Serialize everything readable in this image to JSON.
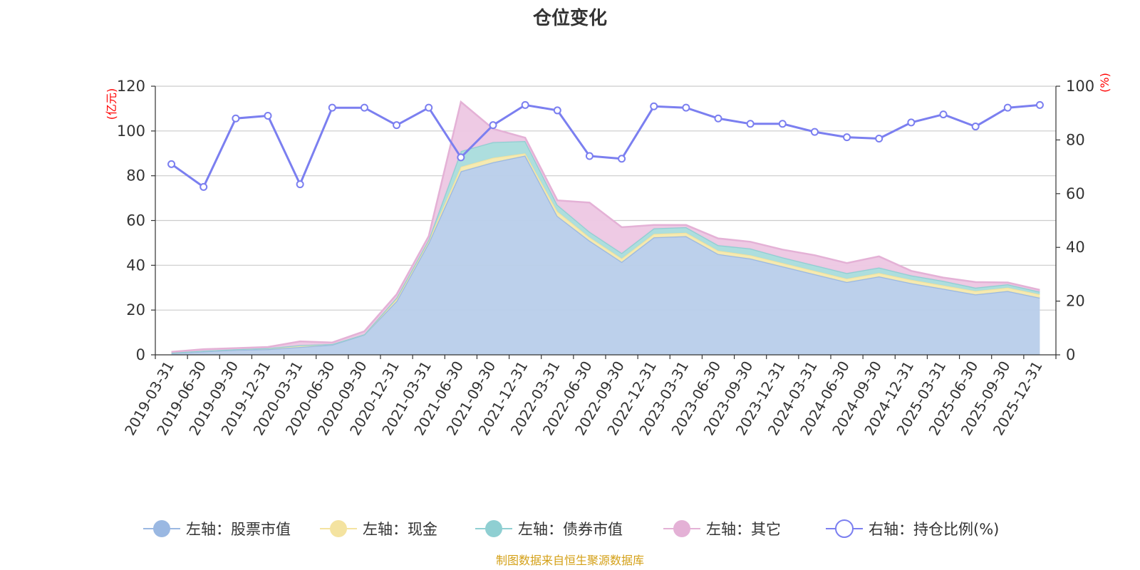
{
  "chart_data": {
    "type": "area",
    "title": "仓位变化",
    "left_unit": "(亿元)",
    "right_unit": "(%)",
    "categories": [
      "2019-03-31",
      "2019-06-30",
      "2019-09-30",
      "2019-12-31",
      "2020-03-31",
      "2020-06-30",
      "2020-09-30",
      "2020-12-31",
      "2021-03-31",
      "2021-06-30",
      "2021-09-30",
      "2021-12-31",
      "2022-03-31",
      "2022-06-30",
      "2022-09-30",
      "2022-12-31",
      "2023-03-31",
      "2023-06-30",
      "2023-09-30",
      "2023-12-31",
      "2024-03-31",
      "2024-06-30",
      "2024-09-30",
      "2024-12-31",
      "2025-03-31",
      "2025-06-30",
      "2025-09-30",
      "2025-12-31"
    ],
    "left_axis": {
      "min": 0,
      "max": 120,
      "ticks": [
        "0",
        "20",
        "40",
        "60",
        "80",
        "100",
        "120"
      ]
    },
    "right_axis": {
      "min": 0,
      "max": 100,
      "ticks": [
        "0",
        "20",
        "40",
        "60",
        "80",
        "100"
      ]
    },
    "series": [
      {
        "name": "左轴：股票市值",
        "axis": "left",
        "stacked": true,
        "color": "#9ab8e2",
        "fill": "#b8cdea",
        "values": [
          0.8,
          1.5,
          2.2,
          2.5,
          3.5,
          4.5,
          9.0,
          24.0,
          50.0,
          82.0,
          86.0,
          89.0,
          62.0,
          51.0,
          41.5,
          52.5,
          53.0,
          45.0,
          43.0,
          39.5,
          36.0,
          32.5,
          35.0,
          32.0,
          29.5,
          27.0,
          28.5,
          25.5
        ]
      },
      {
        "name": "左轴：现金",
        "axis": "left",
        "stacked": true,
        "color": "#f4e3a0",
        "fill": "#f5e9ad",
        "values": [
          0.2,
          0.3,
          0.3,
          0.5,
          0.8,
          0.3,
          0.2,
          1.0,
          1.0,
          2.0,
          2.0,
          1.0,
          2.0,
          1.5,
          1.5,
          1.5,
          1.5,
          1.5,
          1.5,
          1.5,
          1.5,
          1.5,
          1.5,
          1.5,
          1.5,
          1.5,
          1.5,
          1.5
        ]
      },
      {
        "name": "左轴：债券市值",
        "axis": "left",
        "stacked": true,
        "color": "#8fcfd2",
        "fill": "#a9dcdc",
        "values": [
          0.0,
          0.0,
          0.0,
          0.0,
          0.0,
          0.0,
          0.0,
          0.5,
          0.5,
          7.0,
          7.0,
          5.5,
          3.0,
          2.5,
          2.5,
          2.5,
          2.5,
          2.5,
          3.0,
          2.5,
          2.5,
          2.5,
          2.5,
          2.0,
          2.0,
          1.5,
          1.5,
          1.2
        ]
      },
      {
        "name": "左轴：其它",
        "axis": "left",
        "stacked": true,
        "color": "#e4b1d6",
        "fill": "#edc7e3",
        "values": [
          0.3,
          0.7,
          0.5,
          0.5,
          1.7,
          0.7,
          1.3,
          1.5,
          1.5,
          22.0,
          6.0,
          1.5,
          2.0,
          13.0,
          11.5,
          1.5,
          1.0,
          3.0,
          3.0,
          3.5,
          4.5,
          4.5,
          5.0,
          2.0,
          1.5,
          2.5,
          0.8,
          0.8
        ]
      },
      {
        "name": "右轴：持仓比例(%)",
        "axis": "right",
        "type": "line",
        "color": "#7b7ff0",
        "values": [
          71.0,
          62.5,
          88.0,
          89.0,
          63.5,
          92.0,
          92.0,
          85.5,
          92.0,
          73.5,
          85.5,
          93.0,
          91.0,
          74.0,
          73.0,
          92.5,
          92.0,
          88.0,
          86.0,
          86.0,
          83.0,
          81.0,
          80.5,
          86.5,
          89.5,
          85.0,
          92.0,
          93.0
        ]
      }
    ]
  },
  "source": "制图数据来自恒生聚源数据库"
}
